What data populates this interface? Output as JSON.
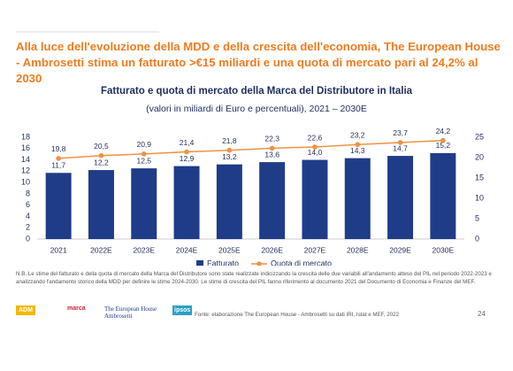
{
  "header": {
    "title": "Alla luce dell'evoluzione della MDD e della crescita dell'economia, The European House - Ambrosetti stima un fatturato >€15 miliardi e una quota di mercato pari al 24,2% al 2030"
  },
  "chart_data": {
    "type": "bar",
    "title": "Fatturato e quota di mercato della Marca del Distributore  in Italia",
    "subtitle": "(valori in miliardi di Euro e percentuali), 2021 – 2030E",
    "categories": [
      "2021",
      "2022E",
      "2023E",
      "2024E",
      "2025E",
      "2026E",
      "2027E",
      "2028E",
      "2029E",
      "2030E"
    ],
    "series": [
      {
        "name": "Fatturato",
        "color": "#1f3c88",
        "values": [
          11.7,
          12.2,
          12.5,
          12.9,
          13.2,
          13.6,
          14.0,
          14.3,
          14.7,
          15.2
        ],
        "value_labels": [
          "11,7",
          "12,2",
          "12,5",
          "12,9",
          "13,2",
          "13,6",
          "14,0",
          "14,3",
          "14,7",
          "15,2"
        ]
      },
      {
        "name": "Quota di mercato",
        "type": "line",
        "axis": "y2",
        "color": "#f0913f",
        "values": [
          19.8,
          20.5,
          20.9,
          21.4,
          21.8,
          22.3,
          22.6,
          23.2,
          23.7,
          24.2
        ],
        "value_labels": [
          "19,8",
          "20,5",
          "20,9",
          "21,4",
          "21,8",
          "22,3",
          "22,6",
          "23,2",
          "23,7",
          "24,2"
        ]
      }
    ],
    "ylim": [
      0,
      18
    ],
    "yticks": [
      0,
      2,
      4,
      6,
      8,
      10,
      12,
      14,
      16,
      18
    ],
    "y2lim": [
      0,
      25
    ],
    "y2ticks": [
      0,
      5,
      10,
      15,
      20,
      25
    ],
    "grid": false,
    "legend": "bottom"
  },
  "footer": {
    "note": "N.B. Le stime del fatturato e della quota di mercato della Marca del Distributore sono state realizzate indicizzando la crescita delle due variabili all'andamento atteso del PIL nel periodo 2022-2023 e analizzando l'andamento storico della MDD per definire le stime 2024-2030. Le stime di crescita del PIL fanno riferimento al documento 2021 del Documento di Economia e Finanze del MEF.",
    "source": "Fonte: elaborazione The European House - Ambrosetti su dati IRI, Istat e MEF, 2022",
    "logos": [
      "ADM",
      "marca",
      "The European House Ambrosetti",
      "ipsos"
    ],
    "page_number": "24"
  }
}
